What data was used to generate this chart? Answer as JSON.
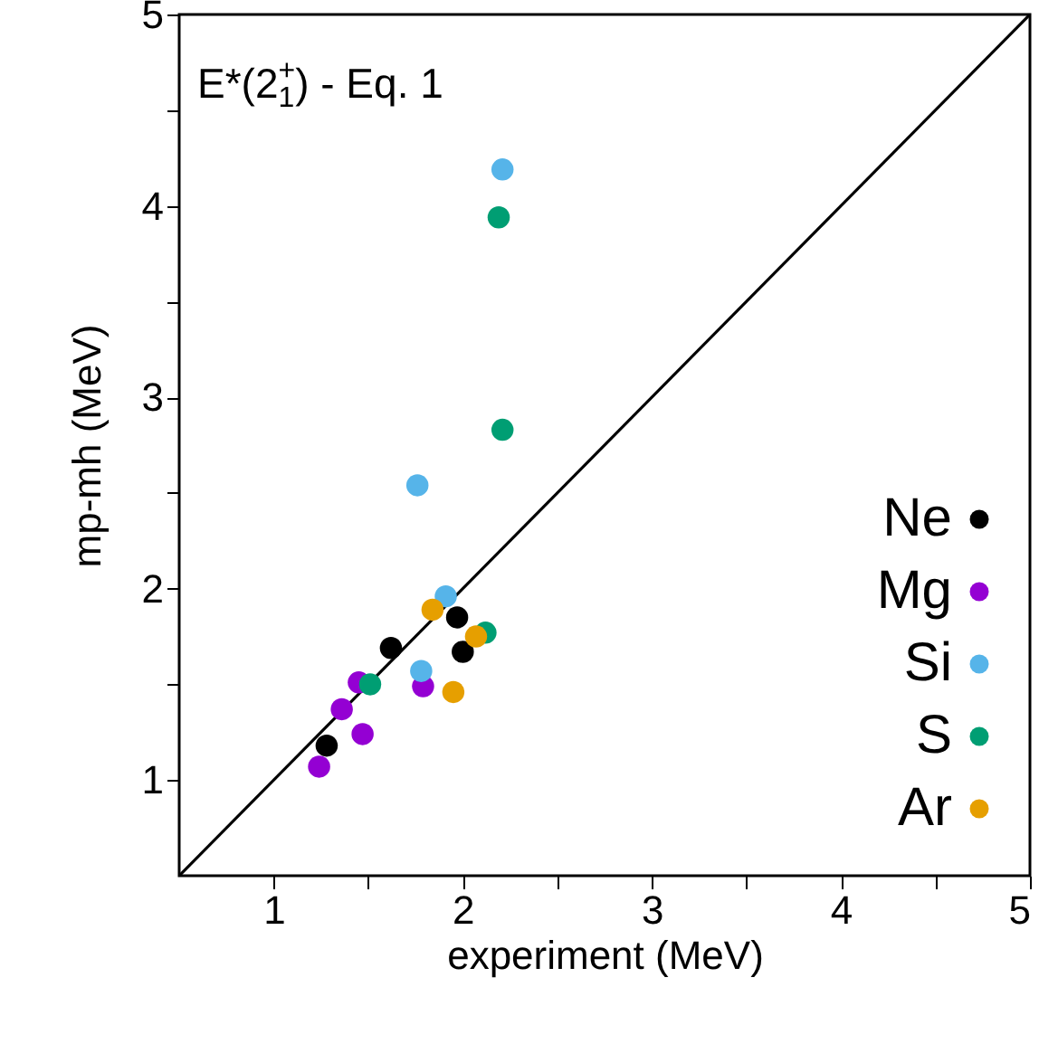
{
  "chart_data": {
    "type": "scatter",
    "title": "E*(2$^{+}$$_{1}$) - Eq. 1",
    "xlabel": "experiment (MeV)",
    "ylabel": "mp-mh (MeV)",
    "xlim": [
      0.5,
      5
    ],
    "ylim": [
      0.5,
      5
    ],
    "xticks": [
      1,
      {
        "value": 1.5,
        "label": null
      },
      2,
      {
        "value": 2.5,
        "label": null
      },
      3,
      {
        "value": 3.5,
        "label": null
      },
      4,
      {
        "value": 4.5,
        "label": null
      },
      5
    ],
    "yticks": [
      1,
      {
        "value": 1.5,
        "label": null
      },
      2,
      {
        "value": 2.5,
        "label": null
      },
      3,
      {
        "value": 3.5,
        "label": null
      },
      4,
      {
        "value": 4.5,
        "label": null
      },
      5
    ],
    "grid": false,
    "legend": "bottom right",
    "marker": "circle",
    "series": [
      {
        "type": "line",
        "color": "#000000",
        "marker": "none",
        "x": [
          0.5,
          5
        ],
        "values": [
          0.5,
          5
        ]
      },
      {
        "name": "Ne",
        "color": "#000000",
        "x": [
          1.28,
          1.62,
          1.97,
          2.0
        ],
        "values": [
          1.18,
          1.69,
          1.85,
          1.67
        ]
      },
      {
        "name": "Mg",
        "color": "#9400d3",
        "x": [
          1.24,
          1.36,
          1.47,
          1.45,
          1.79
        ],
        "values": [
          1.07,
          1.37,
          1.24,
          1.51,
          1.49
        ]
      },
      {
        "name": "Si",
        "color": "#56b4e9",
        "x": [
          1.78,
          1.91,
          2.21,
          1.76
        ],
        "values": [
          1.57,
          1.96,
          4.19,
          2.54
        ]
      },
      {
        "name": "S",
        "color": "#009e73",
        "x": [
          1.51,
          2.12,
          2.19,
          2.21
        ],
        "values": [
          1.5,
          1.77,
          3.94,
          2.83
        ]
      },
      {
        "name": "Ar",
        "color": "#e69f00",
        "x": [
          1.95,
          1.84,
          2.07
        ],
        "values": [
          1.46,
          1.89,
          1.75
        ]
      }
    ]
  }
}
